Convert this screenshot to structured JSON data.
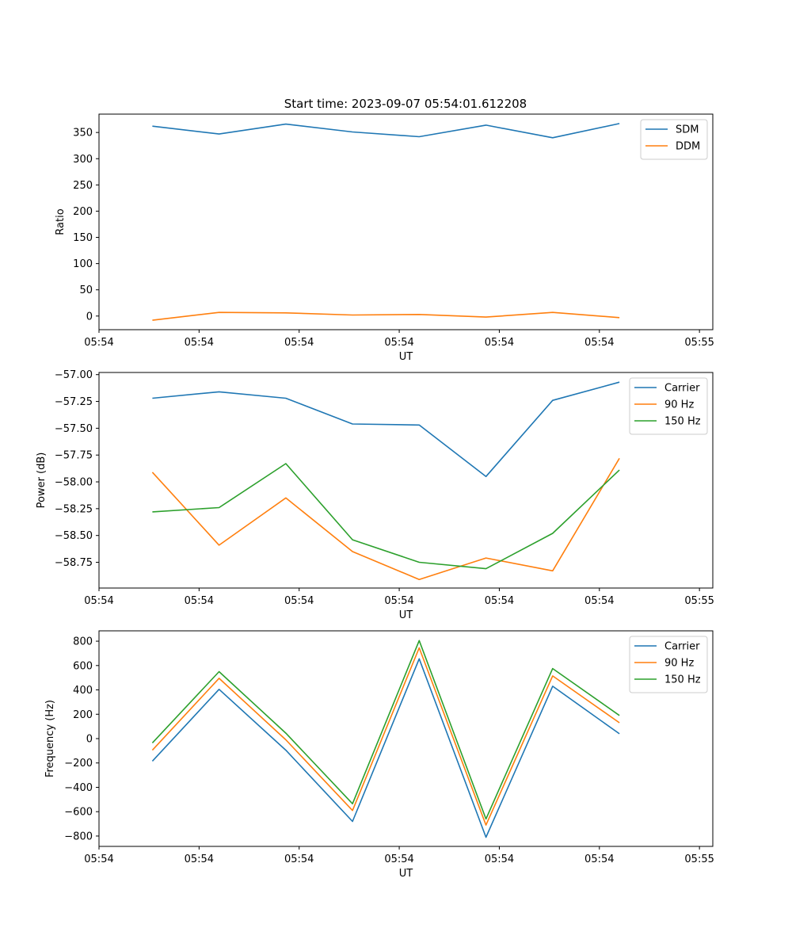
{
  "figure_title": "Start time: 2023-09-07 05:54:01.612208",
  "colors": {
    "blue": "#1f77b4",
    "orange": "#ff7f0e",
    "green": "#2ca02c"
  },
  "chart_data": [
    {
      "type": "line",
      "title": "Start time: 2023-09-07 05:54:01.612208",
      "xlabel": "UT",
      "ylabel": "Ratio",
      "x": [
        1,
        2,
        3,
        4,
        5,
        6,
        7,
        8
      ],
      "xlim": [
        0.2,
        9.4
      ],
      "x_ticks": [
        0.2,
        1.7,
        3.2,
        4.7,
        6.2,
        7.7,
        9.2
      ],
      "x_tick_labels": [
        "05:54",
        "05:54",
        "05:54",
        "05:54",
        "05:54",
        "05:54",
        "05:55"
      ],
      "ylim": [
        -26,
        385
      ],
      "y_ticks": [
        0,
        50,
        100,
        150,
        200,
        250,
        300,
        350
      ],
      "y_tick_labels": [
        "0",
        "50",
        "100",
        "150",
        "200",
        "250",
        "300",
        "350"
      ],
      "legend": "top-right",
      "series": [
        {
          "name": "SDM",
          "color": "#1f77b4",
          "values": [
            362,
            347,
            366,
            351,
            342,
            364,
            340,
            367
          ]
        },
        {
          "name": "DDM",
          "color": "#ff7f0e",
          "values": [
            -8,
            7,
            6,
            2,
            3,
            -2,
            7,
            -3
          ]
        }
      ]
    },
    {
      "type": "line",
      "title": "",
      "xlabel": "UT",
      "ylabel": "Power (dB)",
      "x": [
        1,
        2,
        3,
        4,
        5,
        6,
        7,
        8
      ],
      "xlim": [
        0.2,
        9.4
      ],
      "x_ticks": [
        0.2,
        1.7,
        3.2,
        4.7,
        6.2,
        7.7,
        9.2
      ],
      "x_tick_labels": [
        "05:54",
        "05:54",
        "05:54",
        "05:54",
        "05:54",
        "05:54",
        "05:55"
      ],
      "ylim": [
        -58.99,
        -56.98
      ],
      "y_ticks": [
        -58.75,
        -58.5,
        -58.25,
        -58.0,
        -57.75,
        -57.5,
        -57.25,
        -57.0
      ],
      "y_tick_labels": [
        "−58.75",
        "−58.50",
        "−58.25",
        "−58.00",
        "−57.75",
        "−57.50",
        "−57.25",
        "−57.00"
      ],
      "legend": "top-right",
      "series": [
        {
          "name": "Carrier",
          "color": "#1f77b4",
          "values": [
            -57.22,
            -57.16,
            -57.22,
            -57.46,
            -57.47,
            -57.95,
            -57.24,
            -57.07
          ]
        },
        {
          "name": "90 Hz",
          "color": "#ff7f0e",
          "values": [
            -57.91,
            -58.59,
            -58.15,
            -58.65,
            -58.91,
            -58.71,
            -58.83,
            -57.78
          ]
        },
        {
          "name": "150 Hz",
          "color": "#2ca02c",
          "values": [
            -58.28,
            -58.24,
            -57.83,
            -58.54,
            -58.75,
            -58.81,
            -58.48,
            -57.89
          ]
        }
      ]
    },
    {
      "type": "line",
      "title": "",
      "xlabel": "UT",
      "ylabel": "Frequency (Hz)",
      "x": [
        1,
        2,
        3,
        4,
        5,
        6,
        7,
        8
      ],
      "xlim": [
        0.2,
        9.4
      ],
      "x_ticks": [
        0.2,
        1.7,
        3.2,
        4.7,
        6.2,
        7.7,
        9.2
      ],
      "x_tick_labels": [
        "05:54",
        "05:54",
        "05:54",
        "05:54",
        "05:54",
        "05:54",
        "05:55"
      ],
      "ylim": [
        -885,
        885
      ],
      "y_ticks": [
        -800,
        -600,
        -400,
        -200,
        0,
        200,
        400,
        600,
        800
      ],
      "y_tick_labels": [
        "−800",
        "−600",
        "−400",
        "−200",
        "0",
        "200",
        "400",
        "600",
        "800"
      ],
      "legend": "top-right",
      "series": [
        {
          "name": "Carrier",
          "color": "#1f77b4",
          "values": [
            -185,
            405,
            -95,
            -680,
            655,
            -810,
            430,
            40
          ]
        },
        {
          "name": "90 Hz",
          "color": "#ff7f0e",
          "values": [
            -95,
            495,
            -10,
            -590,
            745,
            -710,
            515,
            130
          ]
        },
        {
          "name": "150 Hz",
          "color": "#2ca02c",
          "values": [
            -35,
            550,
            45,
            -535,
            805,
            -660,
            575,
            190
          ]
        }
      ]
    }
  ]
}
